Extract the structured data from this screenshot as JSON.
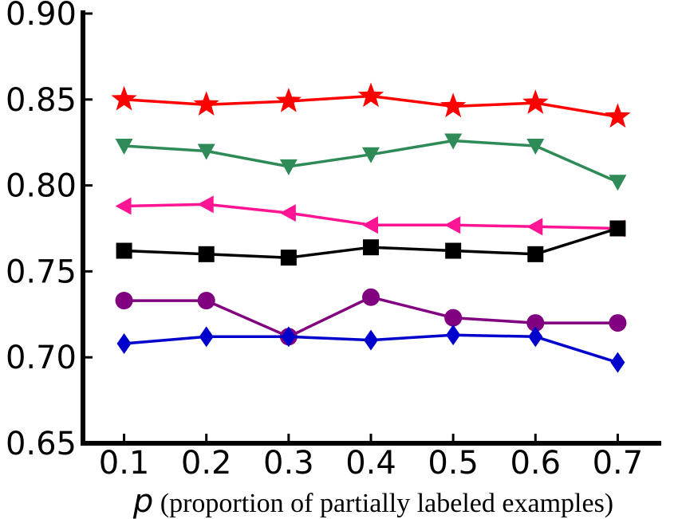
{
  "chart_data": {
    "type": "line",
    "title": "",
    "xlabel_symbol": "p",
    "xlabel_text": " (proportion of partially labeled examples)",
    "ylabel": "",
    "x": [
      0.1,
      0.2,
      0.3,
      0.4,
      0.5,
      0.6,
      0.7
    ],
    "x_tick_labels": [
      "0.1",
      "0.2",
      "0.3",
      "0.4",
      "0.5",
      "0.6",
      "0.7"
    ],
    "xlim": [
      0.05,
      0.75
    ],
    "y_ticks": [
      0.65,
      0.7,
      0.75,
      0.8,
      0.85,
      0.9
    ],
    "y_tick_labels": [
      "0.65",
      "0.70",
      "0.75",
      "0.80",
      "0.85",
      "0.90"
    ],
    "ylim": [
      0.65,
      0.9
    ],
    "grid": false,
    "legend": "none",
    "series": [
      {
        "color": "#ff0000",
        "marker": "star",
        "values": [
          0.85,
          0.847,
          0.849,
          0.852,
          0.846,
          0.848,
          0.84
        ]
      },
      {
        "color": "#2e8b57",
        "marker": "triangle-down",
        "values": [
          0.823,
          0.82,
          0.811,
          0.818,
          0.826,
          0.823,
          0.802
        ]
      },
      {
        "color": "#ff1493",
        "marker": "triangle-left",
        "values": [
          0.788,
          0.789,
          0.784,
          0.777,
          0.777,
          0.776,
          0.775
        ]
      },
      {
        "color": "#000000",
        "marker": "square",
        "values": [
          0.762,
          0.76,
          0.758,
          0.764,
          0.762,
          0.76,
          0.775
        ]
      },
      {
        "color": "#800080",
        "marker": "circle",
        "values": [
          0.733,
          0.733,
          0.712,
          0.735,
          0.723,
          0.72,
          0.72
        ]
      },
      {
        "color": "#0000cd",
        "marker": "diamond",
        "values": [
          0.708,
          0.712,
          0.712,
          0.71,
          0.713,
          0.712,
          0.697
        ]
      }
    ]
  }
}
